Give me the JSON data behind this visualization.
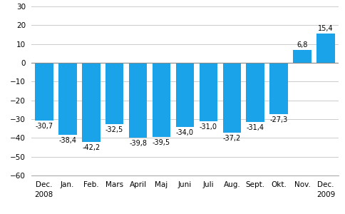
{
  "categories": [
    "Dec.",
    "Jan.",
    "Feb.",
    "Mars",
    "April",
    "Maj",
    "Juni",
    "Juli",
    "Aug.",
    "Sept.",
    "Okt.",
    "Nov.",
    "Dec."
  ],
  "year_labels": {
    "0": "2008",
    "12": "2009"
  },
  "values": [
    -30.7,
    -38.4,
    -42.2,
    -32.5,
    -39.8,
    -39.5,
    -34.0,
    -31.0,
    -37.2,
    -31.4,
    -27.3,
    6.8,
    15.4
  ],
  "bar_color": "#1aa3e8",
  "ylim": [
    -60,
    30
  ],
  "yticks": [
    -60,
    -50,
    -40,
    -30,
    -20,
    -10,
    0,
    10,
    20,
    30
  ],
  "value_labels": [
    "-30,7",
    "-38,4",
    "-42,2",
    "-32,5",
    "-39,8",
    "-39,5",
    "-34,0",
    "-31,0",
    "-37,2",
    "-31,4",
    "-27,3",
    "6,8",
    "15,4"
  ],
  "label_fontsize": 7.0,
  "tick_fontsize": 7.5,
  "background_color": "#ffffff",
  "grid_color": "#cccccc"
}
